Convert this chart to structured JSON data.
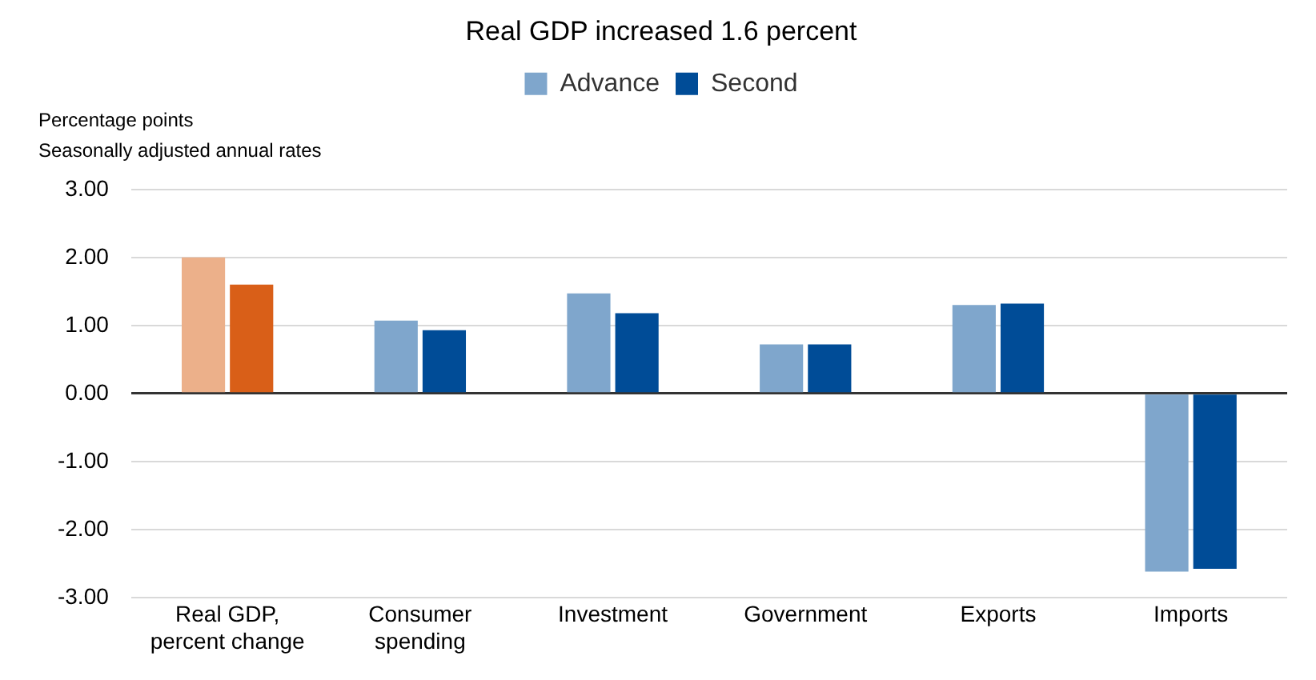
{
  "chart_data": {
    "type": "bar",
    "title": "Real GDP increased 1.6 percent",
    "ylabel": "Percentage points",
    "subtitle": "Seasonally adjusted annual rates",
    "categories": [
      "Real GDP, percent change",
      "Consumer spending",
      "Investment",
      "Government",
      "Exports",
      "Imports"
    ],
    "series": [
      {
        "name": "Advance",
        "color": "#7fa6cc",
        "colors": [
          "#ecb08a",
          "#7fa6cc",
          "#7fa6cc",
          "#7fa6cc",
          "#7fa6cc",
          "#7fa6cc"
        ],
        "values": [
          2.0,
          1.07,
          1.47,
          0.72,
          1.3,
          -2.62
        ]
      },
      {
        "name": "Second",
        "color": "#004c97",
        "colors": [
          "#d95f18",
          "#004c97",
          "#004c97",
          "#004c97",
          "#004c97",
          "#004c97"
        ],
        "values": [
          1.6,
          0.93,
          1.18,
          0.72,
          1.32,
          -2.58
        ]
      }
    ],
    "ylim": [
      -3,
      3
    ],
    "yticks": [
      {
        "value": -3,
        "label": "-3.00"
      },
      {
        "value": -2,
        "label": "-2.00"
      },
      {
        "value": -1,
        "label": "-1.00"
      },
      {
        "value": 0,
        "label": "0.00"
      },
      {
        "value": 1,
        "label": "1.00"
      },
      {
        "value": 2,
        "label": "2.00"
      },
      {
        "value": 3,
        "label": "3.00"
      }
    ],
    "grid": "y",
    "legend": "top"
  }
}
